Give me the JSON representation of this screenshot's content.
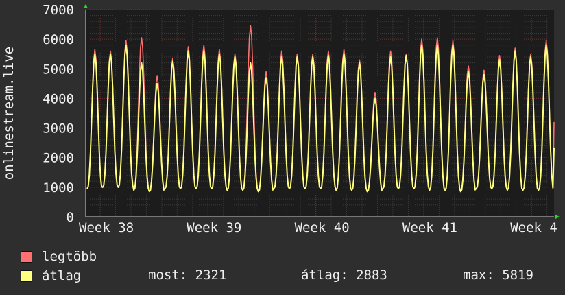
{
  "chart_data": {
    "type": "line",
    "ylabel": "onlinestream.live",
    "ylim": [
      0,
      7000
    ],
    "yticks": [
      0,
      1000,
      2000,
      3000,
      4000,
      5000,
      6000,
      7000
    ],
    "xticks": [
      "Week 38",
      "Week 39",
      "Week 40",
      "Week 41",
      "Week 4"
    ],
    "grid": true,
    "series": [
      {
        "name": "legtöbb",
        "color": "#ff7070",
        "daily_peaks": [
          5650,
          5600,
          5950,
          6050,
          4750,
          5350,
          5750,
          5800,
          5650,
          5500,
          6450,
          4900,
          5600,
          5500,
          5500,
          5600,
          5650,
          5300,
          4200,
          5600,
          5500,
          6000,
          6050,
          5950,
          5100,
          4950,
          5450,
          5700,
          5500,
          5950
        ],
        "daily_lows": [
          950,
          1000,
          1000,
          900,
          850,
          950,
          950,
          950,
          950,
          900,
          900,
          850,
          950,
          950,
          950,
          950,
          900,
          900,
          850,
          950,
          950,
          950,
          900,
          900,
          850,
          950,
          950,
          900,
          900,
          900
        ],
        "last_value": 3200
      },
      {
        "name": "átlag",
        "color": "#ffff80",
        "daily_peaks": [
          5500,
          5500,
          5800,
          5200,
          4500,
          5250,
          5600,
          5600,
          5500,
          5400,
          5200,
          4700,
          5400,
          5400,
          5400,
          5450,
          5500,
          5200,
          4000,
          5400,
          5450,
          5800,
          5800,
          5800,
          4900,
          4800,
          5300,
          5600,
          5400,
          5800
        ],
        "daily_lows": [
          950,
          1000,
          1000,
          900,
          850,
          950,
          950,
          950,
          950,
          900,
          900,
          850,
          950,
          950,
          950,
          950,
          900,
          900,
          850,
          950,
          950,
          950,
          900,
          900,
          850,
          950,
          950,
          900,
          900,
          900
        ],
        "last_value": 2321
      }
    ],
    "stats": {
      "most_label": "most:",
      "most_value": "2321",
      "avg_label": "átlag:",
      "avg_value": "2883",
      "max_label": "max:",
      "max_value": "5819"
    }
  }
}
